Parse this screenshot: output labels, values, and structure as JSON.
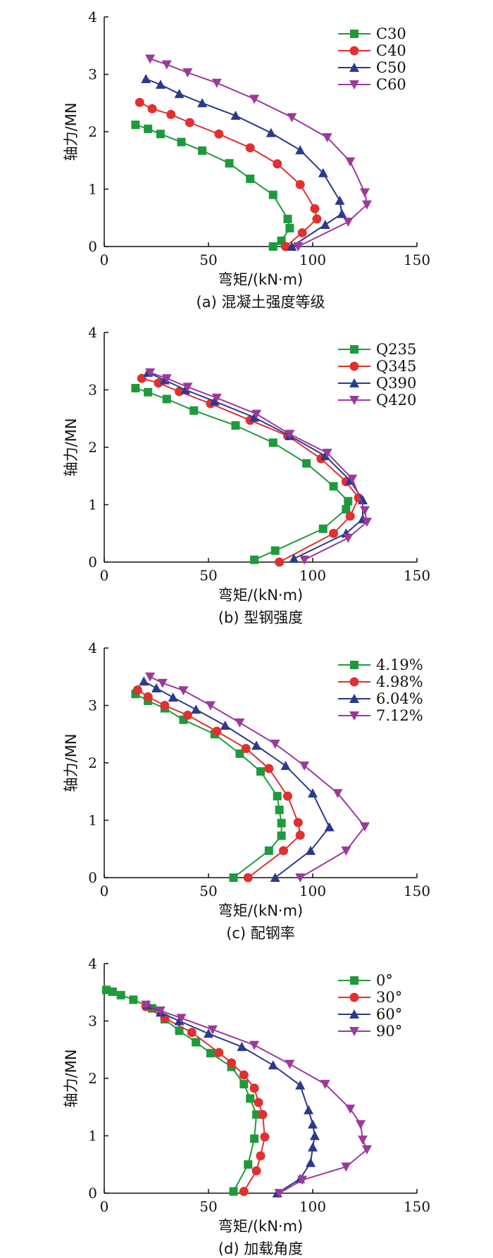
{
  "chart_data": [
    {
      "type": "line",
      "caption": "(a) 混凝土强度等级",
      "xlabel": "弯矩/(kN·m)",
      "ylabel": "轴力/MN",
      "xlim": [
        0,
        150
      ],
      "ylim": [
        0,
        4
      ],
      "xticks": [
        "0",
        "50",
        "100",
        "150"
      ],
      "yticks": [
        "0",
        "1",
        "2",
        "3",
        "4"
      ],
      "legend": "top-right",
      "series": [
        {
          "name": "C30",
          "color": "#1e9a3c",
          "marker": "square",
          "points": [
            [
              81,
              0
            ],
            [
              85,
              0.1
            ],
            [
              89,
              0.32
            ],
            [
              88,
              0.48
            ],
            [
              81,
              0.9
            ],
            [
              70,
              1.18
            ],
            [
              60,
              1.45
            ],
            [
              47,
              1.67
            ],
            [
              37,
              1.82
            ],
            [
              27,
              1.96
            ],
            [
              21,
              2.05
            ],
            [
              15,
              2.12
            ]
          ]
        },
        {
          "name": "C40",
          "color": "#e03030",
          "marker": "circle",
          "points": [
            [
              87,
              0
            ],
            [
              95,
              0.24
            ],
            [
              102,
              0.48
            ],
            [
              101,
              0.66
            ],
            [
              94,
              1.08
            ],
            [
              83,
              1.44
            ],
            [
              70,
              1.72
            ],
            [
              55,
              1.96
            ],
            [
              41,
              2.16
            ],
            [
              32,
              2.3
            ],
            [
              23,
              2.4
            ],
            [
              17,
              2.51
            ]
          ]
        },
        {
          "name": "C50",
          "color": "#2b3a8c",
          "marker": "triangle-up",
          "points": [
            [
              90,
              0
            ],
            [
              106,
              0.38
            ],
            [
              114,
              0.57
            ],
            [
              113,
              0.8
            ],
            [
              105,
              1.28
            ],
            [
              94,
              1.68
            ],
            [
              80,
              1.98
            ],
            [
              63,
              2.28
            ],
            [
              47,
              2.5
            ],
            [
              36,
              2.66
            ],
            [
              27,
              2.82
            ],
            [
              20,
              2.92
            ]
          ]
        },
        {
          "name": "C60",
          "color": "#9b3a9b",
          "marker": "triangle-down",
          "points": [
            [
              93,
              0
            ],
            [
              117,
              0.43
            ],
            [
              126,
              0.73
            ],
            [
              125,
              0.94
            ],
            [
              118,
              1.48
            ],
            [
              107,
              1.9
            ],
            [
              90,
              2.25
            ],
            [
              72,
              2.57
            ],
            [
              54,
              2.85
            ],
            [
              40,
              3.03
            ],
            [
              30,
              3.17
            ],
            [
              22,
              3.27
            ]
          ]
        }
      ]
    },
    {
      "type": "line",
      "caption": "(b) 型钢强度",
      "xlabel": "弯矩/(kN·m)",
      "ylabel": "轴力/MN",
      "xlim": [
        0,
        150
      ],
      "ylim": [
        0,
        4
      ],
      "xticks": [
        "0",
        "50",
        "100",
        "150"
      ],
      "yticks": [
        "0",
        "1",
        "2",
        "3",
        "4"
      ],
      "legend": "top-right",
      "series": [
        {
          "name": "Q235",
          "color": "#1e9a3c",
          "marker": "square",
          "points": [
            [
              72,
              0.04
            ],
            [
              82,
              0.2
            ],
            [
              105,
              0.58
            ],
            [
              116,
              0.92
            ],
            [
              117,
              1.06
            ],
            [
              110,
              1.32
            ],
            [
              97,
              1.72
            ],
            [
              81,
              2.08
            ],
            [
              63,
              2.38
            ],
            [
              43,
              2.64
            ],
            [
              30,
              2.84
            ],
            [
              21,
              2.96
            ],
            [
              15,
              3.03
            ]
          ]
        },
        {
          "name": "Q345",
          "color": "#e03030",
          "marker": "circle",
          "points": [
            [
              84,
              0
            ],
            [
              110,
              0.5
            ],
            [
              118,
              0.8
            ],
            [
              122,
              1.12
            ],
            [
              116,
              1.4
            ],
            [
              104,
              1.8
            ],
            [
              88,
              2.2
            ],
            [
              70,
              2.47
            ],
            [
              51,
              2.76
            ],
            [
              36,
              2.97
            ],
            [
              26,
              3.12
            ],
            [
              18,
              3.2
            ]
          ]
        },
        {
          "name": "Q390",
          "color": "#2b3a8c",
          "marker": "triangle-up",
          "points": [
            [
              91,
              0.06
            ],
            [
              116,
              0.5
            ],
            [
              124,
              0.75
            ],
            [
              124,
              1.08
            ],
            [
              118,
              1.42
            ],
            [
              106,
              1.85
            ],
            [
              89,
              2.2
            ],
            [
              72,
              2.52
            ],
            [
              53,
              2.8
            ],
            [
              39,
              3.0
            ],
            [
              29,
              3.17
            ],
            [
              21,
              3.3
            ]
          ]
        },
        {
          "name": "Q420",
          "color": "#9b3a9b",
          "marker": "triangle-down",
          "points": [
            [
              96,
              0.04
            ],
            [
              117,
              0.42
            ],
            [
              126,
              0.7
            ],
            [
              125,
              0.9
            ],
            [
              119,
              1.45
            ],
            [
              107,
              1.9
            ],
            [
              89,
              2.23
            ],
            [
              73,
              2.58
            ],
            [
              54,
              2.86
            ],
            [
              40,
              3.05
            ],
            [
              30,
              3.2
            ],
            [
              22,
              3.3
            ]
          ]
        }
      ]
    },
    {
      "type": "line",
      "caption": "(c) 配钢率",
      "xlabel": "弯矩/(kN·m)",
      "ylabel": "轴力/MN",
      "xlim": [
        0,
        150
      ],
      "ylim": [
        0,
        4
      ],
      "xticks": [
        "0",
        "50",
        "100",
        "150"
      ],
      "yticks": [
        "0",
        "1",
        "2",
        "3",
        "4"
      ],
      "legend": "top-right",
      "series": [
        {
          "name": "4.19%",
          "color": "#1e9a3c",
          "marker": "square",
          "points": [
            [
              62,
              0
            ],
            [
              79,
              0.47
            ],
            [
              85,
              0.73
            ],
            [
              85,
              0.95
            ],
            [
              84,
              1.18
            ],
            [
              83,
              1.42
            ],
            [
              75,
              1.85
            ],
            [
              65,
              2.16
            ],
            [
              53,
              2.5
            ],
            [
              38,
              2.75
            ],
            [
              29,
              2.95
            ],
            [
              21,
              3.08
            ],
            [
              15,
              3.2
            ]
          ]
        },
        {
          "name": "4.98%",
          "color": "#e03030",
          "marker": "circle",
          "points": [
            [
              69,
              0
            ],
            [
              86,
              0.47
            ],
            [
              94,
              0.74
            ],
            [
              93,
              0.96
            ],
            [
              88,
              1.42
            ],
            [
              79,
              1.9
            ],
            [
              68,
              2.25
            ],
            [
              54,
              2.55
            ],
            [
              40,
              2.83
            ],
            [
              29,
              3.0
            ],
            [
              21,
              3.15
            ],
            [
              16,
              3.27
            ]
          ]
        },
        {
          "name": "6.04%",
          "color": "#2b3a8c",
          "marker": "triangle-up",
          "points": [
            [
              82,
              0
            ],
            [
              99,
              0.47
            ],
            [
              108,
              0.88
            ],
            [
              100,
              1.47
            ],
            [
              87,
              1.95
            ],
            [
              73,
              2.3
            ],
            [
              58,
              2.65
            ],
            [
              44,
              2.93
            ],
            [
              33,
              3.14
            ],
            [
              25,
              3.3
            ],
            [
              19,
              3.42
            ]
          ]
        },
        {
          "name": "7.12%",
          "color": "#9b3a9b",
          "marker": "triangle-down",
          "points": [
            [
              94,
              0
            ],
            [
              116,
              0.47
            ],
            [
              125,
              0.89
            ],
            [
              112,
              1.47
            ],
            [
              96,
              1.95
            ],
            [
              82,
              2.33
            ],
            [
              65,
              2.7
            ],
            [
              51,
              3.0
            ],
            [
              38,
              3.26
            ],
            [
              28,
              3.39
            ],
            [
              22,
              3.5
            ]
          ]
        }
      ]
    },
    {
      "type": "line",
      "caption": "(d) 加载角度",
      "xlabel": "弯矩/(kN·m)",
      "ylabel": "轴力/MN",
      "xlim": [
        0,
        150
      ],
      "ylim": [
        0,
        4
      ],
      "xticks": [
        "0",
        "50",
        "100",
        "150"
      ],
      "yticks": [
        "0",
        "1",
        "2",
        "3",
        "4"
      ],
      "legend": "top-right",
      "series": [
        {
          "name": "0°",
          "color": "#1e9a3c",
          "marker": "square",
          "points": [
            [
              62,
              0.03
            ],
            [
              69,
              0.5
            ],
            [
              72,
              0.95
            ],
            [
              73,
              1.37
            ],
            [
              70,
              1.65
            ],
            [
              67,
              1.9
            ],
            [
              61,
              2.2
            ],
            [
              51,
              2.44
            ],
            [
              44,
              2.63
            ],
            [
              36,
              2.83
            ],
            [
              29,
              3.03
            ],
            [
              23,
              3.22
            ],
            [
              14,
              3.37
            ],
            [
              8,
              3.45
            ],
            [
              4,
              3.51
            ],
            [
              1,
              3.54
            ]
          ]
        },
        {
          "name": "30°",
          "color": "#e03030",
          "marker": "circle",
          "points": [
            [
              67,
              0.03
            ],
            [
              73,
              0.39
            ],
            [
              75,
              0.65
            ],
            [
              77,
              0.98
            ],
            [
              76,
              1.37
            ],
            [
              74,
              1.58
            ],
            [
              72,
              1.83
            ],
            [
              67,
              2.06
            ],
            [
              61,
              2.27
            ],
            [
              55,
              2.45
            ],
            [
              42,
              2.8
            ],
            [
              29,
              3.05
            ],
            [
              20,
              3.25
            ]
          ]
        },
        {
          "name": "60°",
          "color": "#2b3a8c",
          "marker": "triangle-up",
          "points": [
            [
              83,
              0
            ],
            [
              94,
              0.25
            ],
            [
              99,
              0.53
            ],
            [
              100,
              0.8
            ],
            [
              101,
              1.0
            ],
            [
              100,
              1.2
            ],
            [
              98,
              1.45
            ],
            [
              94,
              1.88
            ],
            [
              81,
              2.23
            ],
            [
              66,
              2.55
            ],
            [
              50,
              2.78
            ],
            [
              36,
              3.0
            ],
            [
              27,
              3.15
            ],
            [
              21,
              3.28
            ]
          ]
        },
        {
          "name": "90°",
          "color": "#9b3a9b",
          "marker": "triangle-down",
          "points": [
            [
              84,
              0
            ],
            [
              95,
              0.23
            ],
            [
              116,
              0.46
            ],
            [
              126,
              0.76
            ],
            [
              124,
              0.93
            ],
            [
              123,
              1.2
            ],
            [
              118,
              1.47
            ],
            [
              106,
              1.9
            ],
            [
              89,
              2.25
            ],
            [
              72,
              2.58
            ],
            [
              52,
              2.85
            ],
            [
              37,
              3.05
            ],
            [
              27,
              3.18
            ],
            [
              20,
              3.28
            ]
          ]
        }
      ]
    }
  ]
}
